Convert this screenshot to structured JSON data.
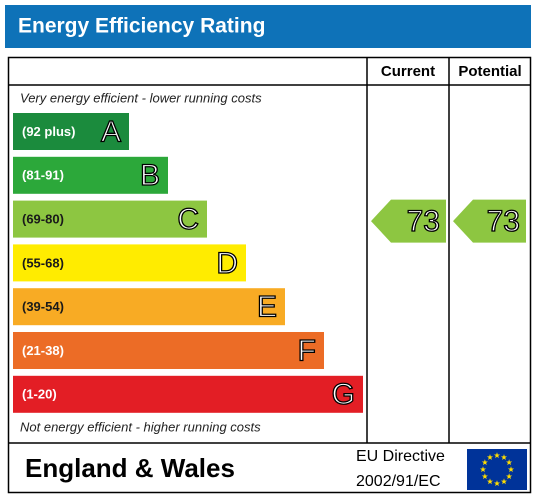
{
  "title": "Energy Efficiency Rating",
  "headers": {
    "current": "Current",
    "potential": "Potential"
  },
  "top_note": "Very energy efficient - lower running costs",
  "bottom_note": "Not energy efficient - higher running costs",
  "bands": [
    {
      "range": "(92 plus)",
      "letter": "A",
      "color": "#1b8b3d",
      "text_color": "#ffffff"
    },
    {
      "range": "(81-91)",
      "letter": "B",
      "color": "#2ca83a",
      "text_color": "#ffffff"
    },
    {
      "range": "(69-80)",
      "letter": "C",
      "color": "#8dc641",
      "text_color": "#1a1a1a"
    },
    {
      "range": "(55-68)",
      "letter": "D",
      "color": "#ffec00",
      "text_color": "#1a1a1a"
    },
    {
      "range": "(39-54)",
      "letter": "E",
      "color": "#f8ab24",
      "text_color": "#1a1a1a"
    },
    {
      "range": "(21-38)",
      "letter": "F",
      "color": "#ec6c26",
      "text_color": "#ffffff"
    },
    {
      "range": "(1-20)",
      "letter": "G",
      "color": "#e31e25",
      "text_color": "#ffffff"
    }
  ],
  "current": 73,
  "potential": 73,
  "footer": {
    "region": "England & Wales",
    "directive": "EU Directive",
    "directive_code": "2002/91/EC"
  }
}
